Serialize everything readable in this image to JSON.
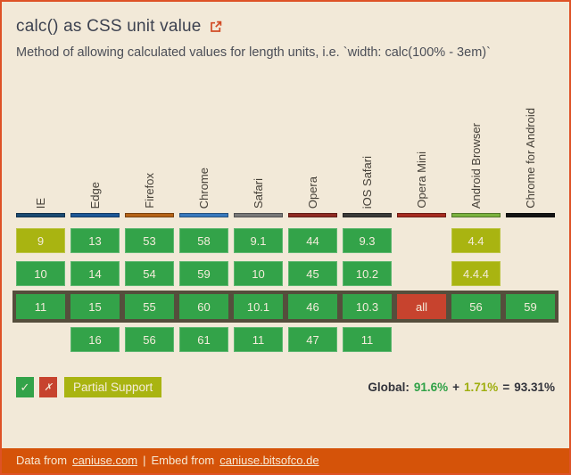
{
  "header": {
    "title": "calc() as CSS unit value",
    "description": "Method of allowing calculated values for length units, i.e. `width: calc(100% - 3em)`"
  },
  "colors": {
    "background": "#f2e9d8",
    "accent_orange": "#d55309",
    "supported_green": "#33a349",
    "partial_olive": "#a9b411",
    "unsupported_red": "#c7432e",
    "current_row_border": "#554e3c"
  },
  "table": {
    "browsers": [
      {
        "name": "IE",
        "color": "#1b4a72"
      },
      {
        "name": "Edge",
        "color": "#1d5796"
      },
      {
        "name": "Firefox",
        "color": "#b56317"
      },
      {
        "name": "Chrome",
        "color": "#3879bd"
      },
      {
        "name": "Safari",
        "color": "#787878"
      },
      {
        "name": "Opera",
        "color": "#8f2a22"
      },
      {
        "name": "iOS Safari",
        "color": "#3a3a38"
      },
      {
        "name": "Opera Mini",
        "color": "#a62b20"
      },
      {
        "name": "Android Browser",
        "color": "#7ab23e"
      },
      {
        "name": "Chrome for Android",
        "color": "#141414"
      }
    ],
    "rows": [
      {
        "current": false,
        "cells": [
          {
            "text": "9",
            "support": "a"
          },
          {
            "text": "13",
            "support": "y"
          },
          {
            "text": "53",
            "support": "y"
          },
          {
            "text": "58",
            "support": "y"
          },
          {
            "text": "9.1",
            "support": "y"
          },
          {
            "text": "44",
            "support": "y"
          },
          {
            "text": "9.3",
            "support": "y"
          },
          {
            "text": "",
            "support": "e"
          },
          {
            "text": "4.4",
            "support": "a"
          },
          {
            "text": "",
            "support": "e"
          }
        ]
      },
      {
        "current": false,
        "cells": [
          {
            "text": "10",
            "support": "y"
          },
          {
            "text": "14",
            "support": "y"
          },
          {
            "text": "54",
            "support": "y"
          },
          {
            "text": "59",
            "support": "y"
          },
          {
            "text": "10",
            "support": "y"
          },
          {
            "text": "45",
            "support": "y"
          },
          {
            "text": "10.2",
            "support": "y"
          },
          {
            "text": "",
            "support": "e"
          },
          {
            "text": "4.4.4",
            "support": "a"
          },
          {
            "text": "",
            "support": "e"
          }
        ]
      },
      {
        "current": true,
        "cells": [
          {
            "text": "11",
            "support": "y"
          },
          {
            "text": "15",
            "support": "y"
          },
          {
            "text": "55",
            "support": "y"
          },
          {
            "text": "60",
            "support": "y"
          },
          {
            "text": "10.1",
            "support": "y"
          },
          {
            "text": "46",
            "support": "y"
          },
          {
            "text": "10.3",
            "support": "y"
          },
          {
            "text": "all",
            "support": "n"
          },
          {
            "text": "56",
            "support": "y"
          },
          {
            "text": "59",
            "support": "y"
          }
        ]
      },
      {
        "current": false,
        "cells": [
          {
            "text": "",
            "support": "e"
          },
          {
            "text": "16",
            "support": "y"
          },
          {
            "text": "56",
            "support": "y"
          },
          {
            "text": "61",
            "support": "y"
          },
          {
            "text": "11",
            "support": "y"
          },
          {
            "text": "47",
            "support": "y"
          },
          {
            "text": "11",
            "support": "y"
          },
          {
            "text": "",
            "support": "e"
          },
          {
            "text": "",
            "support": "e"
          },
          {
            "text": "",
            "support": "e"
          }
        ]
      }
    ]
  },
  "legend": {
    "supported_symbol": "✓",
    "unsupported_symbol": "✗",
    "partial_label": "Partial Support"
  },
  "global": {
    "label": "Global:",
    "supported_pct": "91.6%",
    "plus": "+",
    "partial_pct": "1.71%",
    "equals": "=",
    "total_pct": "93.31%"
  },
  "footer": {
    "data_from": "Data from",
    "link1": "caniuse.com",
    "separator": "|",
    "embed_from": "Embed from",
    "link2": "caniuse.bitsofco.de"
  }
}
